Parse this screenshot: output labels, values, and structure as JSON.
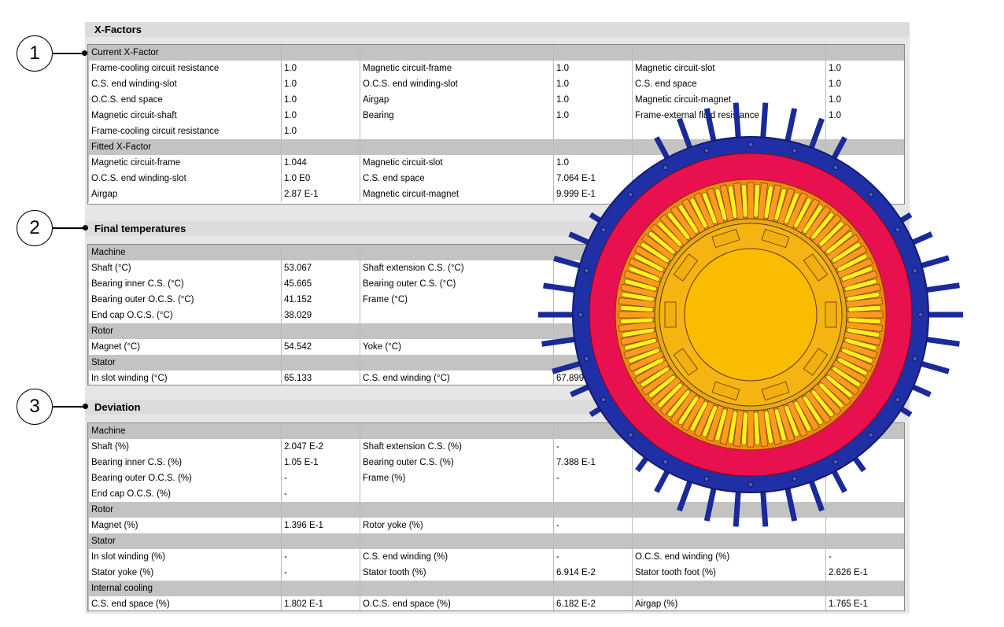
{
  "callouts": [
    "1",
    "2",
    "3"
  ],
  "sections": [
    {
      "title": "X-Factors",
      "rows": [
        {
          "group": "Current X-Factor"
        },
        {
          "cells": [
            "Frame-cooling circuit resistance",
            "1.0",
            "Magnetic circuit-frame",
            "1.0",
            "Magnetic circuit-slot",
            "1.0"
          ]
        },
        {
          "cells": [
            "C.S. end winding-slot",
            "1.0",
            "O.C.S. end winding-slot",
            "1.0",
            "C.S. end space",
            "1.0"
          ]
        },
        {
          "cells": [
            "O.C.S. end space",
            "1.0",
            "Airgap",
            "1.0",
            "Magnetic circuit-magnet",
            "1.0"
          ]
        },
        {
          "cells": [
            "Magnetic circuit-shaft",
            "1.0",
            "Bearing",
            "1.0",
            "Frame-external fluid resistance",
            "1.0"
          ]
        },
        {
          "cells": [
            "Frame-cooling circuit resistance",
            "1.0"
          ]
        },
        {
          "group": "Fitted X-Factor"
        },
        {
          "cells": [
            "Magnetic circuit-frame",
            "1.044",
            "Magnetic circuit-slot",
            "1.0"
          ]
        },
        {
          "cells": [
            "O.C.S. end winding-slot",
            "1.0 E0",
            "C.S. end space",
            "7.064 E-1"
          ]
        },
        {
          "cells": [
            "Airgap",
            "2.87 E-1",
            "Magnetic circuit-magnet",
            "9.999 E-1"
          ]
        }
      ]
    },
    {
      "title": "Final temperatures",
      "rows": [
        {
          "group": "Machine"
        },
        {
          "cells": [
            "Shaft (°C)",
            "53.067",
            "Shaft extension C.S. (°C)"
          ]
        },
        {
          "cells": [
            "Bearing inner C.S. (°C)",
            "45.665",
            "Bearing outer C.S. (°C)"
          ]
        },
        {
          "cells": [
            "Bearing outer O.C.S. (°C)",
            "41.152",
            "Frame (°C)"
          ]
        },
        {
          "cells": [
            "End cap O.C.S. (°C)",
            "38.029"
          ]
        },
        {
          "group": "Rotor"
        },
        {
          "cells": [
            "Magnet (°C)",
            "54.542",
            "Yoke (°C)"
          ]
        },
        {
          "group": "Stator"
        },
        {
          "cells": [
            "In slot winding (°C)",
            "65.133",
            "C.S. end winding (°C)",
            "67.899"
          ]
        }
      ]
    },
    {
      "title": "Deviation",
      "rows": [
        {
          "group": "Machine"
        },
        {
          "cells": [
            "Shaft (%)",
            "2.047 E-2",
            "Shaft extension C.S. (%)",
            "-"
          ]
        },
        {
          "cells": [
            "Bearing inner C.S. (%)",
            "1.05 E-1",
            "Bearing outer C.S. (%)",
            "7.388 E-1"
          ]
        },
        {
          "cells": [
            "Bearing outer O.C.S. (%)",
            "-",
            "Frame (%)",
            "-"
          ]
        },
        {
          "cells": [
            "End cap O.C.S. (%)",
            "-"
          ]
        },
        {
          "group": "Rotor"
        },
        {
          "cells": [
            "Magnet (%)",
            "1.396 E-1",
            "Rotor yoke (%)",
            "-"
          ]
        },
        {
          "group": "Stator"
        },
        {
          "cells": [
            "In slot winding (%)",
            "-",
            "C.S. end winding (%)",
            "-",
            "O.C.S. end winding (%)",
            "-"
          ]
        },
        {
          "cells": [
            "Stator yoke (%)",
            "-",
            "Stator tooth (%)",
            "6.914 E-2",
            "Stator tooth foot (%)",
            "2.626 E-1"
          ]
        },
        {
          "group": "Internal cooling"
        },
        {
          "cells": [
            "C.S. end space (%)",
            "1.802 E-1",
            "O.C.S. end space (%)",
            "6.182 E-2",
            "Airgap (%)",
            "1.765 E-1"
          ]
        }
      ]
    }
  ]
}
